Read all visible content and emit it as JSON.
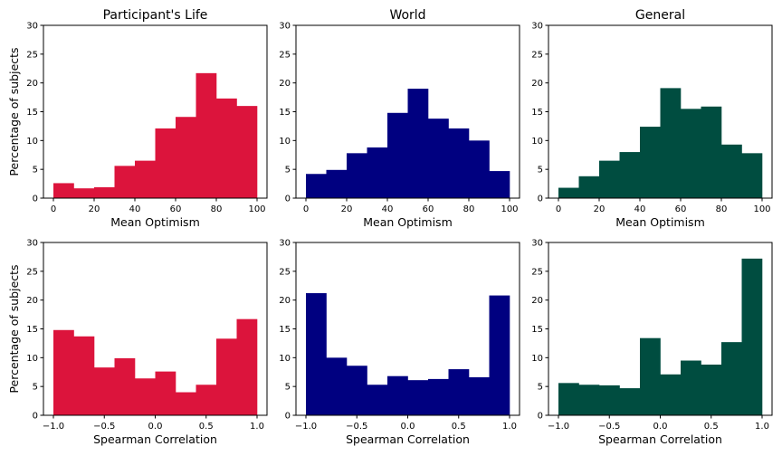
{
  "chart_data": [
    {
      "type": "bar",
      "title": "Participant's Life",
      "xlabel": "Mean Optimism",
      "ylabel": "Percentage of subjects",
      "xlim": [
        0,
        100
      ],
      "ylim": [
        0,
        30
      ],
      "xticks": [
        0,
        20,
        40,
        60,
        80,
        100
      ],
      "yticks": [
        0,
        5,
        10,
        15,
        20,
        25,
        30
      ],
      "bin_edges": [
        0,
        10,
        20,
        30,
        40,
        50,
        60,
        70,
        80,
        90,
        100
      ],
      "values": [
        2.6,
        1.7,
        1.9,
        5.6,
        6.5,
        12.1,
        14.1,
        21.7,
        17.3,
        16.0
      ],
      "color": "#dc143c"
    },
    {
      "type": "bar",
      "title": "World",
      "xlabel": "Mean Optimism",
      "ylabel": "",
      "xlim": [
        0,
        100
      ],
      "ylim": [
        0,
        30
      ],
      "xticks": [
        0,
        20,
        40,
        60,
        80,
        100
      ],
      "yticks": [
        0,
        5,
        10,
        15,
        20,
        25,
        30
      ],
      "bin_edges": [
        0,
        10,
        20,
        30,
        40,
        50,
        60,
        70,
        80,
        90,
        100
      ],
      "values": [
        4.2,
        4.9,
        7.8,
        8.8,
        14.8,
        19.0,
        13.8,
        12.1,
        10.0,
        4.7
      ],
      "color": "#000080"
    },
    {
      "type": "bar",
      "title": "General",
      "xlabel": "Mean Optimism",
      "ylabel": "",
      "xlim": [
        0,
        100
      ],
      "ylim": [
        0,
        30
      ],
      "xticks": [
        0,
        20,
        40,
        60,
        80,
        100
      ],
      "yticks": [
        0,
        5,
        10,
        15,
        20,
        25,
        30
      ],
      "bin_edges": [
        0,
        10,
        20,
        30,
        40,
        50,
        60,
        70,
        80,
        90,
        100
      ],
      "values": [
        1.8,
        3.8,
        6.5,
        8.0,
        12.4,
        19.1,
        15.5,
        15.9,
        9.3,
        7.8
      ],
      "color": "#004d40"
    },
    {
      "type": "bar",
      "title": "",
      "xlabel": "Spearman Correlation",
      "ylabel": "Percentage of subjects",
      "xlim": [
        -1,
        1
      ],
      "ylim": [
        0,
        30
      ],
      "xticks": [
        -1.0,
        -0.5,
        0.0,
        0.5,
        1.0
      ],
      "yticks": [
        0,
        5,
        10,
        15,
        20,
        25,
        30
      ],
      "bin_edges": [
        -1.0,
        -0.8,
        -0.6,
        -0.4,
        -0.2,
        0.0,
        0.2,
        0.4,
        0.6,
        0.8,
        1.0
      ],
      "values": [
        14.8,
        13.7,
        8.3,
        9.9,
        6.4,
        7.6,
        4.0,
        5.3,
        13.3,
        16.7
      ],
      "color": "#dc143c"
    },
    {
      "type": "bar",
      "title": "",
      "xlabel": "Spearman Correlation",
      "ylabel": "",
      "xlim": [
        -1,
        1
      ],
      "ylim": [
        0,
        30
      ],
      "xticks": [
        -1.0,
        -0.5,
        0.0,
        0.5,
        1.0
      ],
      "yticks": [
        0,
        5,
        10,
        15,
        20,
        25,
        30
      ],
      "bin_edges": [
        -1.0,
        -0.8,
        -0.6,
        -0.4,
        -0.2,
        0.0,
        0.2,
        0.4,
        0.6,
        0.8,
        1.0
      ],
      "values": [
        21.2,
        10.0,
        8.6,
        5.3,
        6.8,
        6.1,
        6.3,
        8.0,
        6.6,
        20.8
      ],
      "color": "#000080"
    },
    {
      "type": "bar",
      "title": "",
      "xlabel": "Spearman Correlation",
      "ylabel": "",
      "xlim": [
        -1,
        1
      ],
      "ylim": [
        0,
        30
      ],
      "xticks": [
        -1.0,
        -0.5,
        0.0,
        0.5,
        1.0
      ],
      "yticks": [
        0,
        5,
        10,
        15,
        20,
        25,
        30
      ],
      "bin_edges": [
        -1.0,
        -0.8,
        -0.6,
        -0.4,
        -0.2,
        0.0,
        0.2,
        0.4,
        0.6,
        0.8,
        1.0
      ],
      "values": [
        5.6,
        5.3,
        5.2,
        4.7,
        13.4,
        7.1,
        9.5,
        8.8,
        12.7,
        27.2
      ],
      "color": "#004d40"
    }
  ]
}
